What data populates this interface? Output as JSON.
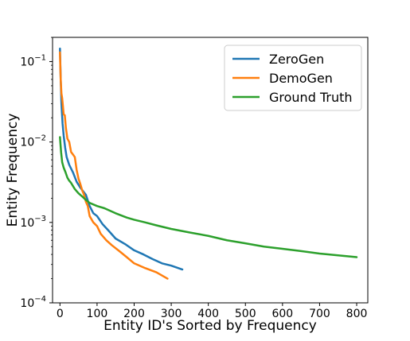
{
  "chart_data": {
    "type": "line",
    "title": "",
    "xlabel": "Entity ID's Sorted by Frequency",
    "ylabel": "Entity Frequency",
    "xlim": [
      -20,
      830
    ],
    "ylim": [
      0.0001,
      0.2
    ],
    "yscale": "log",
    "grid": false,
    "legend_position": "top-right",
    "x_ticks": [
      0,
      100,
      200,
      300,
      400,
      500,
      600,
      700,
      800
    ],
    "x_tick_labels": [
      "0",
      "100",
      "200",
      "300",
      "400",
      "500",
      "600",
      "700",
      "800"
    ],
    "y_ticks": [
      0.0001,
      0.001,
      0.01,
      0.1
    ],
    "y_tick_labels": [
      {
        "base": "10",
        "exp": "−4"
      },
      {
        "base": "10",
        "exp": "−3"
      },
      {
        "base": "10",
        "exp": "−2"
      },
      {
        "base": "10",
        "exp": "−1"
      }
    ],
    "series": [
      {
        "name": "ZeroGen",
        "color": "#1f77b4",
        "x": [
          0,
          2,
          4,
          7,
          10,
          14,
          18,
          25,
          35,
          45,
          55,
          70,
          80,
          90,
          100,
          115,
          130,
          150,
          175,
          200,
          225,
          250,
          275,
          300,
          330
        ],
        "y": [
          0.145,
          0.06,
          0.03,
          0.017,
          0.012,
          0.0085,
          0.0065,
          0.0052,
          0.0042,
          0.0032,
          0.0027,
          0.0022,
          0.0016,
          0.0013,
          0.0012,
          0.00095,
          0.0008,
          0.00063,
          0.00054,
          0.00045,
          0.0004,
          0.00035,
          0.00031,
          0.00029,
          0.00026
        ]
      },
      {
        "name": "DemoGen",
        "color": "#ff7f0e",
        "x": [
          0,
          2,
          4,
          6,
          8,
          10,
          13,
          16,
          20,
          25,
          30,
          35,
          40,
          45,
          50,
          55,
          60,
          65,
          70,
          75,
          80,
          90,
          100,
          110,
          125,
          140,
          160,
          180,
          200,
          230,
          260,
          290
        ],
        "y": [
          0.13,
          0.06,
          0.04,
          0.035,
          0.028,
          0.022,
          0.0215,
          0.015,
          0.011,
          0.01,
          0.0075,
          0.007,
          0.0065,
          0.0045,
          0.0035,
          0.003,
          0.0025,
          0.0022,
          0.0018,
          0.0016,
          0.0012,
          0.001,
          0.0009,
          0.00072,
          0.0006,
          0.00052,
          0.00044,
          0.00037,
          0.00031,
          0.00027,
          0.00024,
          0.0002
        ]
      },
      {
        "name": "Ground Truth",
        "color": "#2ca02c",
        "x": [
          0,
          3,
          6,
          10,
          15,
          20,
          25,
          30,
          40,
          50,
          60,
          70,
          80,
          100,
          120,
          150,
          180,
          200,
          230,
          260,
          300,
          350,
          400,
          450,
          500,
          550,
          600,
          650,
          700,
          750,
          800
        ],
        "y": [
          0.0115,
          0.0075,
          0.0056,
          0.0048,
          0.0042,
          0.0036,
          0.0033,
          0.0031,
          0.0026,
          0.0023,
          0.0021,
          0.0019,
          0.00175,
          0.0016,
          0.0015,
          0.0013,
          0.00115,
          0.00108,
          0.001,
          0.00092,
          0.00083,
          0.00075,
          0.00068,
          0.0006,
          0.00055,
          0.0005,
          0.00047,
          0.00044,
          0.00041,
          0.00039,
          0.00037
        ]
      }
    ]
  }
}
